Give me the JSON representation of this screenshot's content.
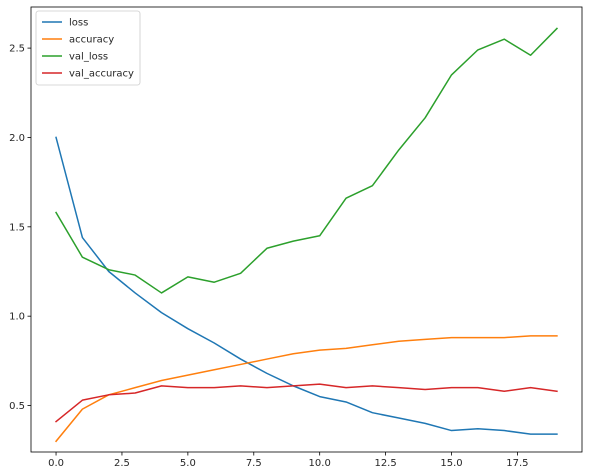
{
  "chart_data": {
    "type": "line",
    "title": "",
    "xlabel": "",
    "ylabel": "",
    "xlim": [
      -0.95,
      19.95
    ],
    "ylim": [
      0.24,
      2.73
    ],
    "x_ticks": [
      0.0,
      2.5,
      5.0,
      7.5,
      10.0,
      12.5,
      15.0,
      17.5
    ],
    "x_tick_labels": [
      "0.0",
      "2.5",
      "5.0",
      "7.5",
      "10.0",
      "12.5",
      "15.0",
      "17.5"
    ],
    "y_ticks": [
      0.5,
      1.0,
      1.5,
      2.0,
      2.5
    ],
    "y_tick_labels": [
      "0.5",
      "1.0",
      "1.5",
      "2.0",
      "2.5"
    ],
    "grid": false,
    "legend_position": "top-left",
    "x": [
      0,
      1,
      2,
      3,
      4,
      5,
      6,
      7,
      8,
      9,
      10,
      11,
      12,
      13,
      14,
      15,
      16,
      17,
      18,
      19
    ],
    "series": [
      {
        "name": "loss",
        "color": "#1f77b4",
        "values": [
          2.0,
          1.44,
          1.25,
          1.13,
          1.02,
          0.93,
          0.85,
          0.76,
          0.68,
          0.61,
          0.55,
          0.52,
          0.46,
          0.43,
          0.4,
          0.36,
          0.37,
          0.36,
          0.34,
          0.34
        ]
      },
      {
        "name": "accuracy",
        "color": "#ff7f0e",
        "values": [
          0.3,
          0.48,
          0.56,
          0.6,
          0.64,
          0.67,
          0.7,
          0.73,
          0.76,
          0.79,
          0.81,
          0.82,
          0.84,
          0.86,
          0.87,
          0.88,
          0.88,
          0.88,
          0.89,
          0.89
        ]
      },
      {
        "name": "val_loss",
        "color": "#2ca02c",
        "values": [
          1.58,
          1.33,
          1.26,
          1.23,
          1.13,
          1.22,
          1.19,
          1.24,
          1.38,
          1.42,
          1.45,
          1.66,
          1.73,
          1.93,
          2.11,
          2.35,
          2.49,
          2.55,
          2.46,
          2.61
        ]
      },
      {
        "name": "val_accuracy",
        "color": "#d62728",
        "values": [
          0.41,
          0.53,
          0.56,
          0.57,
          0.61,
          0.6,
          0.6,
          0.61,
          0.6,
          0.61,
          0.62,
          0.6,
          0.61,
          0.6,
          0.59,
          0.6,
          0.6,
          0.58,
          0.6,
          0.58
        ]
      }
    ]
  }
}
